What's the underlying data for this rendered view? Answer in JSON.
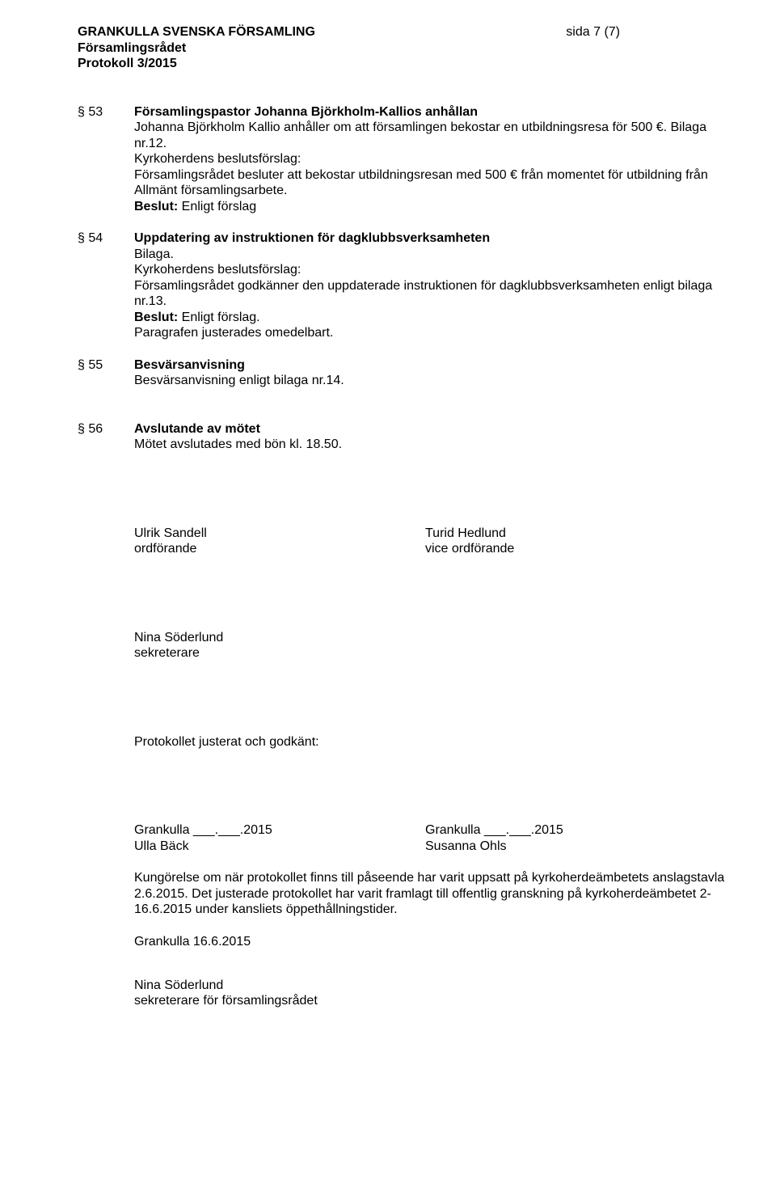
{
  "header": {
    "org": "GRANKULLA SVENSKA FÖRSAMLING",
    "line2": "Församlingsrådet",
    "line3": "Protokoll 3/2015",
    "page_marker": "sida 7 (7)"
  },
  "sections": {
    "s53": {
      "num": "§ 53",
      "title": "Församlingspastor Johanna Björkholm-Kallios anhållan",
      "l1": "Johanna Björkholm Kallio anhåller om att församlingen bekostar en utbildningsresa för 500 €. Bilaga nr.12.",
      "l2": "Kyrkoherdens beslutsförslag:",
      "l3": "Församlingsrådet besluter att bekostar utbildningsresan med 500 € från momentet för utbildning från Allmänt församlingsarbete.",
      "l4a": "Beslut:",
      "l4b": " Enligt förslag"
    },
    "s54": {
      "num": "§ 54",
      "title": "Uppdatering av instruktionen för dagklubbsverksamheten",
      "l1": "Bilaga.",
      "l2": "Kyrkoherdens beslutsförslag:",
      "l3": "Församlingsrådet godkänner den uppdaterade instruktionen för dagklubbsverksamheten enligt bilaga nr.13.",
      "l4a": "Beslut:",
      "l4b": " Enligt förslag.",
      "l5": "Paragrafen justerades omedelbart."
    },
    "s55": {
      "num": "§ 55",
      "title": "Besvärsanvisning",
      "l1": "Besvärsanvisning enligt bilaga nr.14."
    },
    "s56": {
      "num": "§ 56",
      "title": "Avslutande av mötet",
      "l1": "Mötet avslutades med bön kl. 18.50."
    }
  },
  "sign": {
    "p1_name": "Ulrik Sandell",
    "p1_role": "ordförande",
    "p2_name": "Turid Hedlund",
    "p2_role": "vice ordförande",
    "p3_name": "Nina Söderlund",
    "p3_role": "sekreterare",
    "approved_label": "Protokollet justerat och godkänt:",
    "left_place": "Grankulla ___.___.2015",
    "left_name": "Ulla Bäck",
    "right_place": "Grankulla ___.___.2015",
    "right_name": "Susanna Ohls",
    "notice": "Kungörelse om när protokollet finns till påseende har varit uppsatt på kyrkoherdeämbetets anslagstavla 2.6.2015. Det justerade protokollet har varit framlagt till offentlig granskning på kyrkoherdeämbetet 2-16.6.2015 under kansliets öppethållningstider.",
    "date": "Grankulla 16.6.2015",
    "final_name": "Nina Söderlund",
    "final_role": "sekreterare för församlingsrådet"
  }
}
